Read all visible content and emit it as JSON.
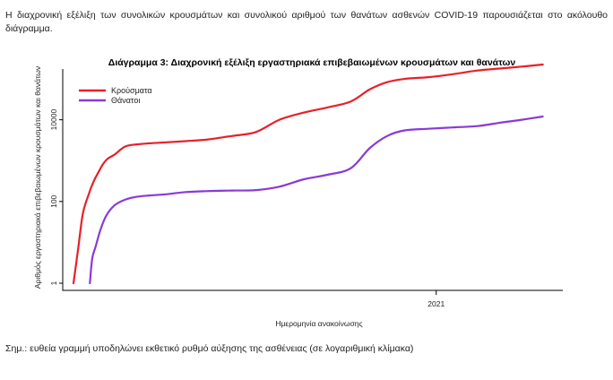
{
  "intro_text": "Η διαχρονική εξέλιξη των συνολικών κρουσμάτων και συνολικού αριθμού των θανάτων ασθενών COVID-19 παρουσιάζεται στο ακόλουθο διάγραμμα.",
  "footnote": "Σημ.: ευθεία γραμμή υποδηλώνει εκθετικό ρυθμό αύξησης της ασθένειας (σε λογαριθμική κλίμακα)",
  "colors": {
    "cases": "#e8202a",
    "deaths": "#8a3ad6"
  },
  "chart_data": {
    "type": "line",
    "title": "Διάγραμμα 3: Διαχρονική εξέλιξη εργαστηριακά επιβεβαιωμένων κρουσμάτων και θανάτων",
    "xlabel": "Ημερομηνία ανακοίνωσης",
    "ylabel": "Αριθμός εργαστηριακά επιβεβαιωμένων κρουσμάτων και θανάτων",
    "y_scale": "log",
    "ylim": [
      1,
      150000
    ],
    "xlim": [
      "2020-02-26",
      "2021-04-10"
    ],
    "x_ticks": [
      {
        "value": "2021-01-01",
        "label": "2021"
      }
    ],
    "y_ticks": [
      {
        "value": 1,
        "label": "1"
      },
      {
        "value": 100,
        "label": "100"
      },
      {
        "value": 10000,
        "label": "10000"
      }
    ],
    "grid": false,
    "legend": "top-left",
    "series": [
      {
        "name": "Κρούσματα",
        "color": "#e8202a",
        "x": [
          "2020-02-26",
          "2020-03-01",
          "2020-03-05",
          "2020-03-10",
          "2020-03-14",
          "2020-03-18",
          "2020-03-22",
          "2020-03-26",
          "2020-04-01",
          "2020-04-10",
          "2020-04-20",
          "2020-05-01",
          "2020-05-15",
          "2020-06-01",
          "2020-06-20",
          "2020-07-10",
          "2020-07-31",
          "2020-08-20",
          "2020-09-10",
          "2020-09-30",
          "2020-10-20",
          "2020-11-05",
          "2020-11-20",
          "2020-12-05",
          "2020-12-25",
          "2021-01-15",
          "2021-02-05",
          "2021-02-25",
          "2021-03-15",
          "2021-04-02"
        ],
        "values": [
          1,
          7,
          50,
          150,
          300,
          500,
          800,
          1100,
          1400,
          2200,
          2500,
          2650,
          2800,
          3000,
          3300,
          4000,
          5000,
          10000,
          15000,
          20000,
          28000,
          55000,
          83000,
          100000,
          110000,
          130000,
          160000,
          180000,
          200000,
          225000
        ]
      },
      {
        "name": "Θάνατοι",
        "color": "#8a3ad6",
        "x": [
          "2020-03-11",
          "2020-03-13",
          "2020-03-16",
          "2020-03-20",
          "2020-03-25",
          "2020-04-01",
          "2020-04-10",
          "2020-04-20",
          "2020-05-01",
          "2020-05-15",
          "2020-06-01",
          "2020-06-20",
          "2020-07-10",
          "2020-07-31",
          "2020-08-20",
          "2020-09-10",
          "2020-09-30",
          "2020-10-20",
          "2020-11-05",
          "2020-11-20",
          "2020-12-05",
          "2020-12-25",
          "2021-01-15",
          "2021-02-05",
          "2021-02-25",
          "2021-03-15",
          "2021-04-02"
        ],
        "values": [
          1,
          4,
          8,
          20,
          45,
          80,
          110,
          130,
          140,
          150,
          170,
          180,
          185,
          190,
          230,
          350,
          450,
          650,
          2000,
          4000,
          5500,
          6000,
          6500,
          7000,
          8500,
          10000,
          12000
        ]
      }
    ]
  }
}
